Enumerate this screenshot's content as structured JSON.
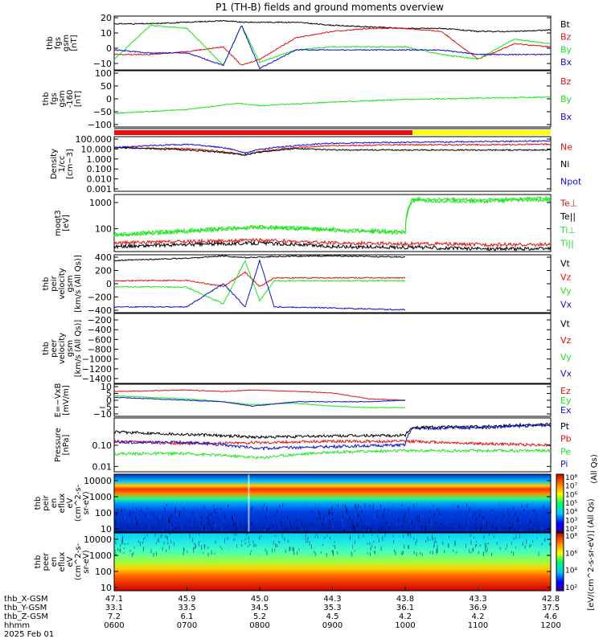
{
  "title": "P1 (TH-B) fields and ground moments overview",
  "colors": {
    "black": "#000000",
    "red": "#e01010",
    "green": "#19e619",
    "blue": "#1010d0",
    "yellow": "#ffff00"
  },
  "x_axis": {
    "rows": [
      {
        "label": "thb_X-GSM",
        "values": [
          "47.1",
          "45.9",
          "45.0",
          "44.3",
          "43.8",
          "43.3",
          "42.8"
        ]
      },
      {
        "label": "thb_Y-GSM",
        "values": [
          "33.1",
          "33.5",
          "34.5",
          "35.3",
          "36.1",
          "36.9",
          "37.5"
        ]
      },
      {
        "label": "thb_Z-GSM",
        "values": [
          "7.2",
          "6.1",
          "5.2",
          "4.5",
          "4.2",
          "4.2",
          "4.6"
        ]
      },
      {
        "label": "hhmm",
        "values": [
          "0600",
          "0700",
          "0800",
          "0900",
          "1000",
          "1100",
          "1200"
        ]
      }
    ],
    "date": "2025 Feb 01"
  },
  "status_bar": {
    "red_until_hour": 10.1
  },
  "panels": [
    {
      "id": "fgs",
      "ylabel": [
        "thb",
        "fgs",
        "gsm",
        "[nT]"
      ],
      "yticks": [
        "20",
        "10",
        "0",
        "−10"
      ],
      "legend": [
        {
          "text": "Bt",
          "color": "#000000"
        },
        {
          "text": "Bz",
          "color": "#e01010"
        },
        {
          "text": "By",
          "color": "#19e619"
        },
        {
          "text": "Bx",
          "color": "#1010d0"
        }
      ]
    },
    {
      "id": "fgs_offset",
      "ylabel": [
        "thb",
        "fgs",
        "gsm",
        "-160",
        "[nT]"
      ],
      "yticks": [
        "100",
        "50",
        "0",
        "−50",
        "−100"
      ],
      "legend": [
        {
          "text": "Bz",
          "color": "#e01010"
        },
        {
          "text": "By",
          "color": "#19e619"
        },
        {
          "text": "Bx",
          "color": "#1010d0"
        }
      ]
    },
    {
      "id": "density",
      "ylabel": [
        "Density",
        "1/cc",
        "[cm−3]"
      ],
      "yticks": [
        "100.000",
        "10.000",
        "1.000",
        "0.100",
        "0.010",
        "0.001"
      ],
      "legend": [
        {
          "text": "Ne",
          "color": "#e01010"
        },
        {
          "text": "Ni",
          "color": "#000000"
        },
        {
          "text": "Npot",
          "color": "#1010d0"
        }
      ]
    },
    {
      "id": "temp",
      "ylabel": [
        "moqt3",
        "[eV]"
      ],
      "yticks": [
        "1000",
        "100"
      ],
      "legend": [
        {
          "text": "Te⊥",
          "color": "#e01010"
        },
        {
          "text": "Te||",
          "color": "#000000"
        },
        {
          "text": "Ti⊥",
          "color": "#19e619"
        },
        {
          "text": "Ti||",
          "color": "#19e619"
        }
      ]
    },
    {
      "id": "peir_vel",
      "ylabel": [
        "thb",
        "peir",
        "velocity",
        "gsm",
        "[km/s (All Qs)]"
      ],
      "yticks": [
        "400",
        "200",
        "0",
        "−200",
        "−400"
      ],
      "legend": [
        {
          "text": "Vt",
          "color": "#000000"
        },
        {
          "text": "Vz",
          "color": "#e01010"
        },
        {
          "text": "Vy",
          "color": "#19e619"
        },
        {
          "text": "Vx",
          "color": "#1010d0"
        }
      ]
    },
    {
      "id": "peer_vel",
      "ylabel": [
        "thb",
        "peer",
        "velocity",
        "gsm",
        "[km/s (All Qs)]"
      ],
      "yticks": [
        "−200",
        "−400",
        "−600",
        "−800",
        "−1000",
        "−1200",
        "−1400"
      ],
      "legend": [
        {
          "text": "Vt",
          "color": "#000000"
        },
        {
          "text": "Vz",
          "color": "#e01010"
        },
        {
          "text": "Vy",
          "color": "#19e619"
        },
        {
          "text": "Vx",
          "color": "#1010d0"
        }
      ]
    },
    {
      "id": "efield",
      "ylabel": [
        "E=−VxB",
        "[mV/m]"
      ],
      "yticks": [
        "10",
        "5",
        "0",
        "−5",
        "−10"
      ],
      "legend": [
        {
          "text": "Ez",
          "color": "#e01010"
        },
        {
          "text": "Ey",
          "color": "#19e619"
        },
        {
          "text": "Ex",
          "color": "#1010d0"
        }
      ]
    },
    {
      "id": "pressure",
      "ylabel": [
        "Pressure",
        "[nPa]"
      ],
      "yticks": [
        "0.10",
        "0.01"
      ],
      "legend": [
        {
          "text": "Pt",
          "color": "#000000"
        },
        {
          "text": "Pb",
          "color": "#e01010"
        },
        {
          "text": "Pe",
          "color": "#19e619"
        },
        {
          "text": "Pi",
          "color": "#1010d0"
        }
      ],
      "right_note": "(All Qs)"
    },
    {
      "id": "peir_en",
      "ylabel": [
        "thb",
        "peir",
        "en",
        "eflux",
        "eV",
        "(cm^2-s-",
        "sr-eV)"
      ],
      "yticks": [
        "10000",
        "1000",
        "100",
        "10"
      ]
    },
    {
      "id": "peer_en",
      "ylabel": [
        "thb",
        "peer",
        "en",
        "eflux",
        "eV",
        "(cm^2-s-",
        "sr-eV)"
      ],
      "yticks": [
        "10000",
        "1000",
        "100",
        "10"
      ]
    }
  ],
  "colorbar": {
    "ticks": [
      "10⁸",
      "10⁷",
      "10⁶",
      "10⁵",
      "10⁴",
      "10³",
      "10²"
    ],
    "ticks2": [
      "10⁸",
      "10⁶",
      "10⁴",
      "10²"
    ],
    "label": "[eV/(cm^2-s-sr-eV)] (All Qs)"
  },
  "chart_data": [
    {
      "type": "line",
      "title": "P1 (TH-B) fields and ground moments overview",
      "ylabel": "thb fgs gsm [nT]",
      "ylim": [
        -15,
        20
      ],
      "x": [
        6.0,
        6.5,
        7.0,
        7.5,
        7.75,
        8.0,
        8.5,
        9.0,
        9.5,
        10.0,
        10.5,
        11.0,
        11.5,
        12.0
      ],
      "series": [
        {
          "name": "Bt",
          "values": [
            15,
            15,
            16,
            17,
            16,
            16,
            16,
            14,
            13,
            12,
            12,
            10,
            10,
            11
          ]
        },
        {
          "name": "Bz",
          "values": [
            -5,
            -5,
            -3,
            0,
            -12,
            -8,
            6,
            10,
            12,
            12,
            10,
            -8,
            2,
            0
          ]
        },
        {
          "name": "By",
          "values": [
            -8,
            14,
            12,
            -12,
            14,
            -10,
            -2,
            0,
            0,
            0,
            -5,
            -8,
            5,
            2
          ]
        },
        {
          "name": "Bx",
          "values": [
            -2,
            -4,
            -4,
            -12,
            14,
            -14,
            -2,
            -2,
            -2,
            -2,
            -2,
            -5,
            -5,
            -5
          ]
        }
      ]
    },
    {
      "type": "line",
      "ylabel": "thb fgs gsm -160 [nT]",
      "ylim": [
        -125,
        100
      ],
      "x": [
        6.0,
        7.0,
        7.7,
        8.0,
        9.0,
        10.0,
        11.0,
        12.0
      ],
      "series": [
        {
          "name": "By",
          "values": [
            -70,
            -55,
            -30,
            -40,
            -25,
            -15,
            -10,
            -5
          ]
        }
      ]
    },
    {
      "type": "line",
      "ylabel": "Density 1/cc [cm−3]",
      "ylim": [
        0.001,
        100
      ],
      "x": [
        6.0,
        7.0,
        7.8,
        8.5,
        9.0,
        10.0,
        11.0,
        12.0
      ],
      "series": [
        {
          "name": "Ne",
          "values": [
            10,
            8,
            2,
            10,
            15,
            18,
            18,
            20
          ]
        },
        {
          "name": "Ni",
          "values": [
            10,
            6,
            2,
            8,
            6,
            6,
            6,
            6
          ]
        },
        {
          "name": "Npot",
          "values": [
            10,
            20,
            3,
            15,
            25,
            30,
            35,
            40
          ]
        }
      ]
    },
    {
      "type": "line",
      "ylabel": "moqt3 [eV]",
      "ylim": [
        20,
        2000
      ],
      "x": [
        6.0,
        7.0,
        8.0,
        9.0,
        10.0,
        10.1,
        11.0,
        12.0
      ],
      "series": [
        {
          "name": "Te⊥",
          "values": [
            40,
            45,
            50,
            40,
            38,
            38,
            35,
            35
          ]
        },
        {
          "name": "Te||",
          "values": [
            30,
            35,
            40,
            30,
            28,
            28,
            25,
            25
          ]
        },
        {
          "name": "Ti⊥",
          "values": [
            80,
            110,
            150,
            120,
            100,
            1400,
            1300,
            1500
          ]
        },
        {
          "name": "Ti||",
          "values": [
            70,
            100,
            140,
            110,
            90,
            1200,
            1150,
            1300
          ]
        }
      ]
    },
    {
      "type": "line",
      "ylabel": "thb peir velocity gsm [km/s (All Qs)]",
      "ylim": [
        -500,
        500
      ],
      "x": [
        6.0,
        7.0,
        7.5,
        7.8,
        8.0,
        8.2,
        9.0,
        10.0
      ],
      "series": [
        {
          "name": "Vt",
          "values": [
            400,
            440,
            480,
            450,
            460,
            470,
            480,
            460
          ]
        },
        {
          "name": "Vz",
          "values": [
            50,
            60,
            -50,
            200,
            -50,
            100,
            100,
            100
          ]
        },
        {
          "name": "Vy",
          "values": [
            -50,
            -60,
            -350,
            400,
            -300,
            50,
            50,
            50
          ]
        },
        {
          "name": "Vx",
          "values": [
            -400,
            -400,
            0,
            -400,
            400,
            -400,
            -420,
            -450
          ]
        }
      ]
    },
    {
      "type": "line",
      "ylabel": "thb peer velocity gsm [km/s (All Qs)]",
      "ylim": [
        -1400,
        0
      ],
      "series": []
    },
    {
      "type": "line",
      "ylabel": "E=−VxB [mV/m]",
      "ylim": [
        -12,
        10
      ],
      "x": [
        6.0,
        7.0,
        7.5,
        7.9,
        8.5,
        9.0,
        9.5,
        10.0
      ],
      "series": [
        {
          "name": "Ez",
          "values": [
            5,
            6,
            5,
            6,
            5,
            4,
            0,
            -1
          ]
        },
        {
          "name": "Ey",
          "values": [
            2,
            0,
            -2,
            -4,
            -3,
            -5,
            -6,
            -6
          ]
        },
        {
          "name": "Ex",
          "values": [
            1,
            -1,
            -2,
            -5,
            -2,
            -2,
            -2,
            -1
          ]
        }
      ]
    },
    {
      "type": "line",
      "ylabel": "Pressure [nPa]",
      "ylim": [
        0.005,
        1.0
      ],
      "x": [
        6.0,
        7.0,
        8.0,
        9.0,
        10.0,
        10.1,
        11.0,
        12.0
      ],
      "series": [
        {
          "name": "Pt",
          "values": [
            0.25,
            0.2,
            0.15,
            0.17,
            0.18,
            0.4,
            0.42,
            0.55
          ]
        },
        {
          "name": "Pb",
          "values": [
            0.1,
            0.08,
            0.09,
            0.1,
            0.1,
            0.1,
            0.08,
            0.07
          ]
        },
        {
          "name": "Pe",
          "values": [
            0.03,
            0.03,
            0.02,
            0.035,
            0.04,
            0.04,
            0.04,
            0.04
          ]
        },
        {
          "name": "Pi",
          "values": [
            0.09,
            0.09,
            0.05,
            0.06,
            0.07,
            0.35,
            0.38,
            0.5
          ]
        }
      ]
    },
    {
      "type": "heatmap",
      "ylabel": "thb peir en eflux eV (cm^2-s-sr-eV)",
      "ylim": [
        5,
        25000
      ],
      "zlim": [
        100,
        100000000
      ]
    },
    {
      "type": "heatmap",
      "ylabel": "thb peer en eflux eV (cm^2-s-sr-eV)",
      "ylim": [
        5,
        25000
      ],
      "zlim": [
        100,
        100000000
      ]
    }
  ]
}
